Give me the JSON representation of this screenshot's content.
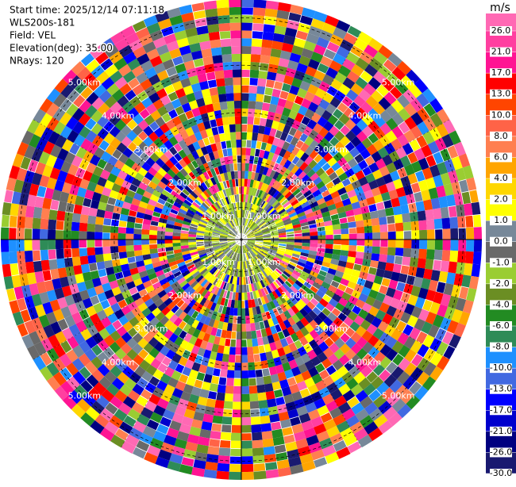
{
  "header": {
    "start_time": "Start time: 2025/12/14 07:11:18",
    "site": "WLS200s-181",
    "field": "Field: VEL",
    "elevation": "Elevation(deg): 35.00",
    "nrays": "NRays: 120"
  },
  "chart_data": {
    "type": "ppi",
    "colorbar": {
      "title": "m/s",
      "ticks": [
        {
          "value": -30,
          "label": "-30.0"
        },
        {
          "value": -26,
          "label": "-26.0"
        },
        {
          "value": -21,
          "label": "-21.0"
        },
        {
          "value": -17,
          "label": "-17.0"
        },
        {
          "value": -13,
          "label": "-13.0"
        },
        {
          "value": -10,
          "label": "-10.0"
        },
        {
          "value": -8,
          "label": "-8.0"
        },
        {
          "value": -6,
          "label": "-6.0"
        },
        {
          "value": -4,
          "label": "-4.0"
        },
        {
          "value": -2,
          "label": "-2.0"
        },
        {
          "value": -1,
          "label": "-1.0"
        },
        {
          "value": 0,
          "label": "0.0"
        },
        {
          "value": 1,
          "label": "1.0"
        },
        {
          "value": 2,
          "label": "2.0"
        },
        {
          "value": 4,
          "label": "4.0"
        },
        {
          "value": 6,
          "label": "6.0"
        },
        {
          "value": 8,
          "label": "8.0"
        },
        {
          "value": 10,
          "label": "10.0"
        },
        {
          "value": 13,
          "label": "13.0"
        },
        {
          "value": 17,
          "label": "17.0"
        },
        {
          "value": 21,
          "label": "21.0"
        },
        {
          "value": 26,
          "label": "26.0"
        }
      ],
      "colors": [
        "#191970",
        "#000080",
        "#0000cd",
        "#0000ff",
        "#4169e1",
        "#1e90ff",
        "#2e8b57",
        "#228b22",
        "#6b8e23",
        "#9acd32",
        "#696969",
        "#778899",
        "#ffff00",
        "#ffd700",
        "#ffa500",
        "#ff7f50",
        "#ff6347",
        "#ff4500",
        "#ff0000",
        "#ff1493",
        "#ff3fa0",
        "#ff69b4"
      ]
    },
    "range_rings": [
      {
        "value": 1,
        "label": "1.00km"
      },
      {
        "value": 2,
        "label": "2.00km"
      },
      {
        "value": 3,
        "label": "3.00km"
      },
      {
        "value": 4,
        "label": "4.00km"
      },
      {
        "value": 5,
        "label": "5.00km"
      }
    ]
  }
}
